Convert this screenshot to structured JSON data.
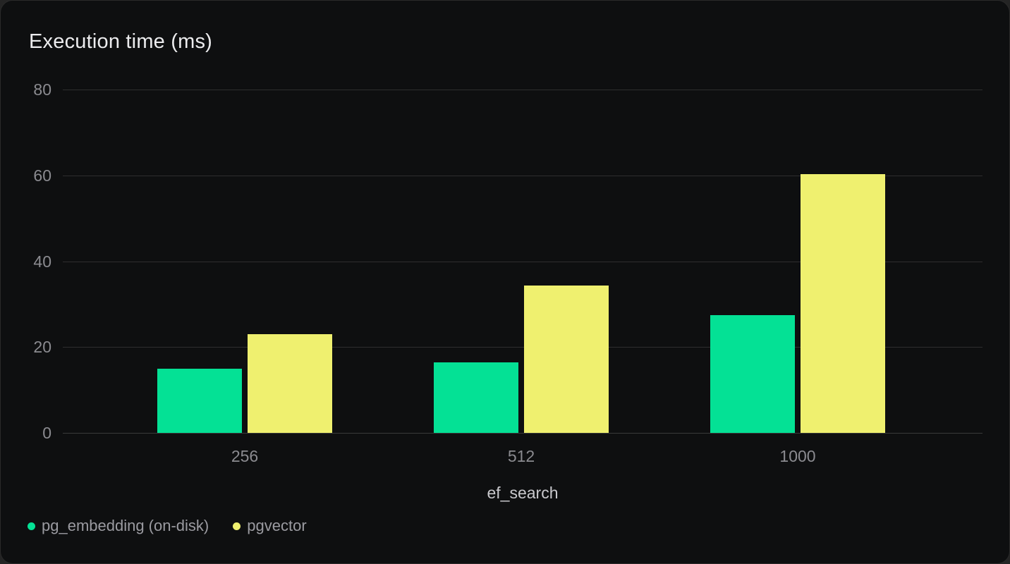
{
  "page": {
    "background_color": "#242424",
    "card_background_color": "#0e0f10",
    "card_border_color": "#2a2a2a"
  },
  "chart_data": {
    "type": "bar",
    "title": "Execution time (ms)",
    "xlabel": "ef_search",
    "ylabel": "",
    "categories": [
      "256",
      "512",
      "1000"
    ],
    "series": [
      {
        "name": "pg_embedding (on-disk)",
        "color": "#04e195",
        "values": [
          15.0,
          16.4,
          27.5
        ]
      },
      {
        "name": "pgvector",
        "color": "#eff06f",
        "values": [
          23.0,
          34.4,
          60.3
        ]
      }
    ],
    "ylim": [
      0,
      80
    ],
    "yticks": [
      0,
      20,
      40,
      60,
      80
    ],
    "grid": true,
    "legend_position": "bottom-left",
    "colors": {
      "title_text": "#ececee",
      "tick_text": "#8b8b90",
      "axis_title_text": "#c9c9cd",
      "legend_text": "#9b9ba1",
      "gridline": "#2e2e2e"
    }
  }
}
